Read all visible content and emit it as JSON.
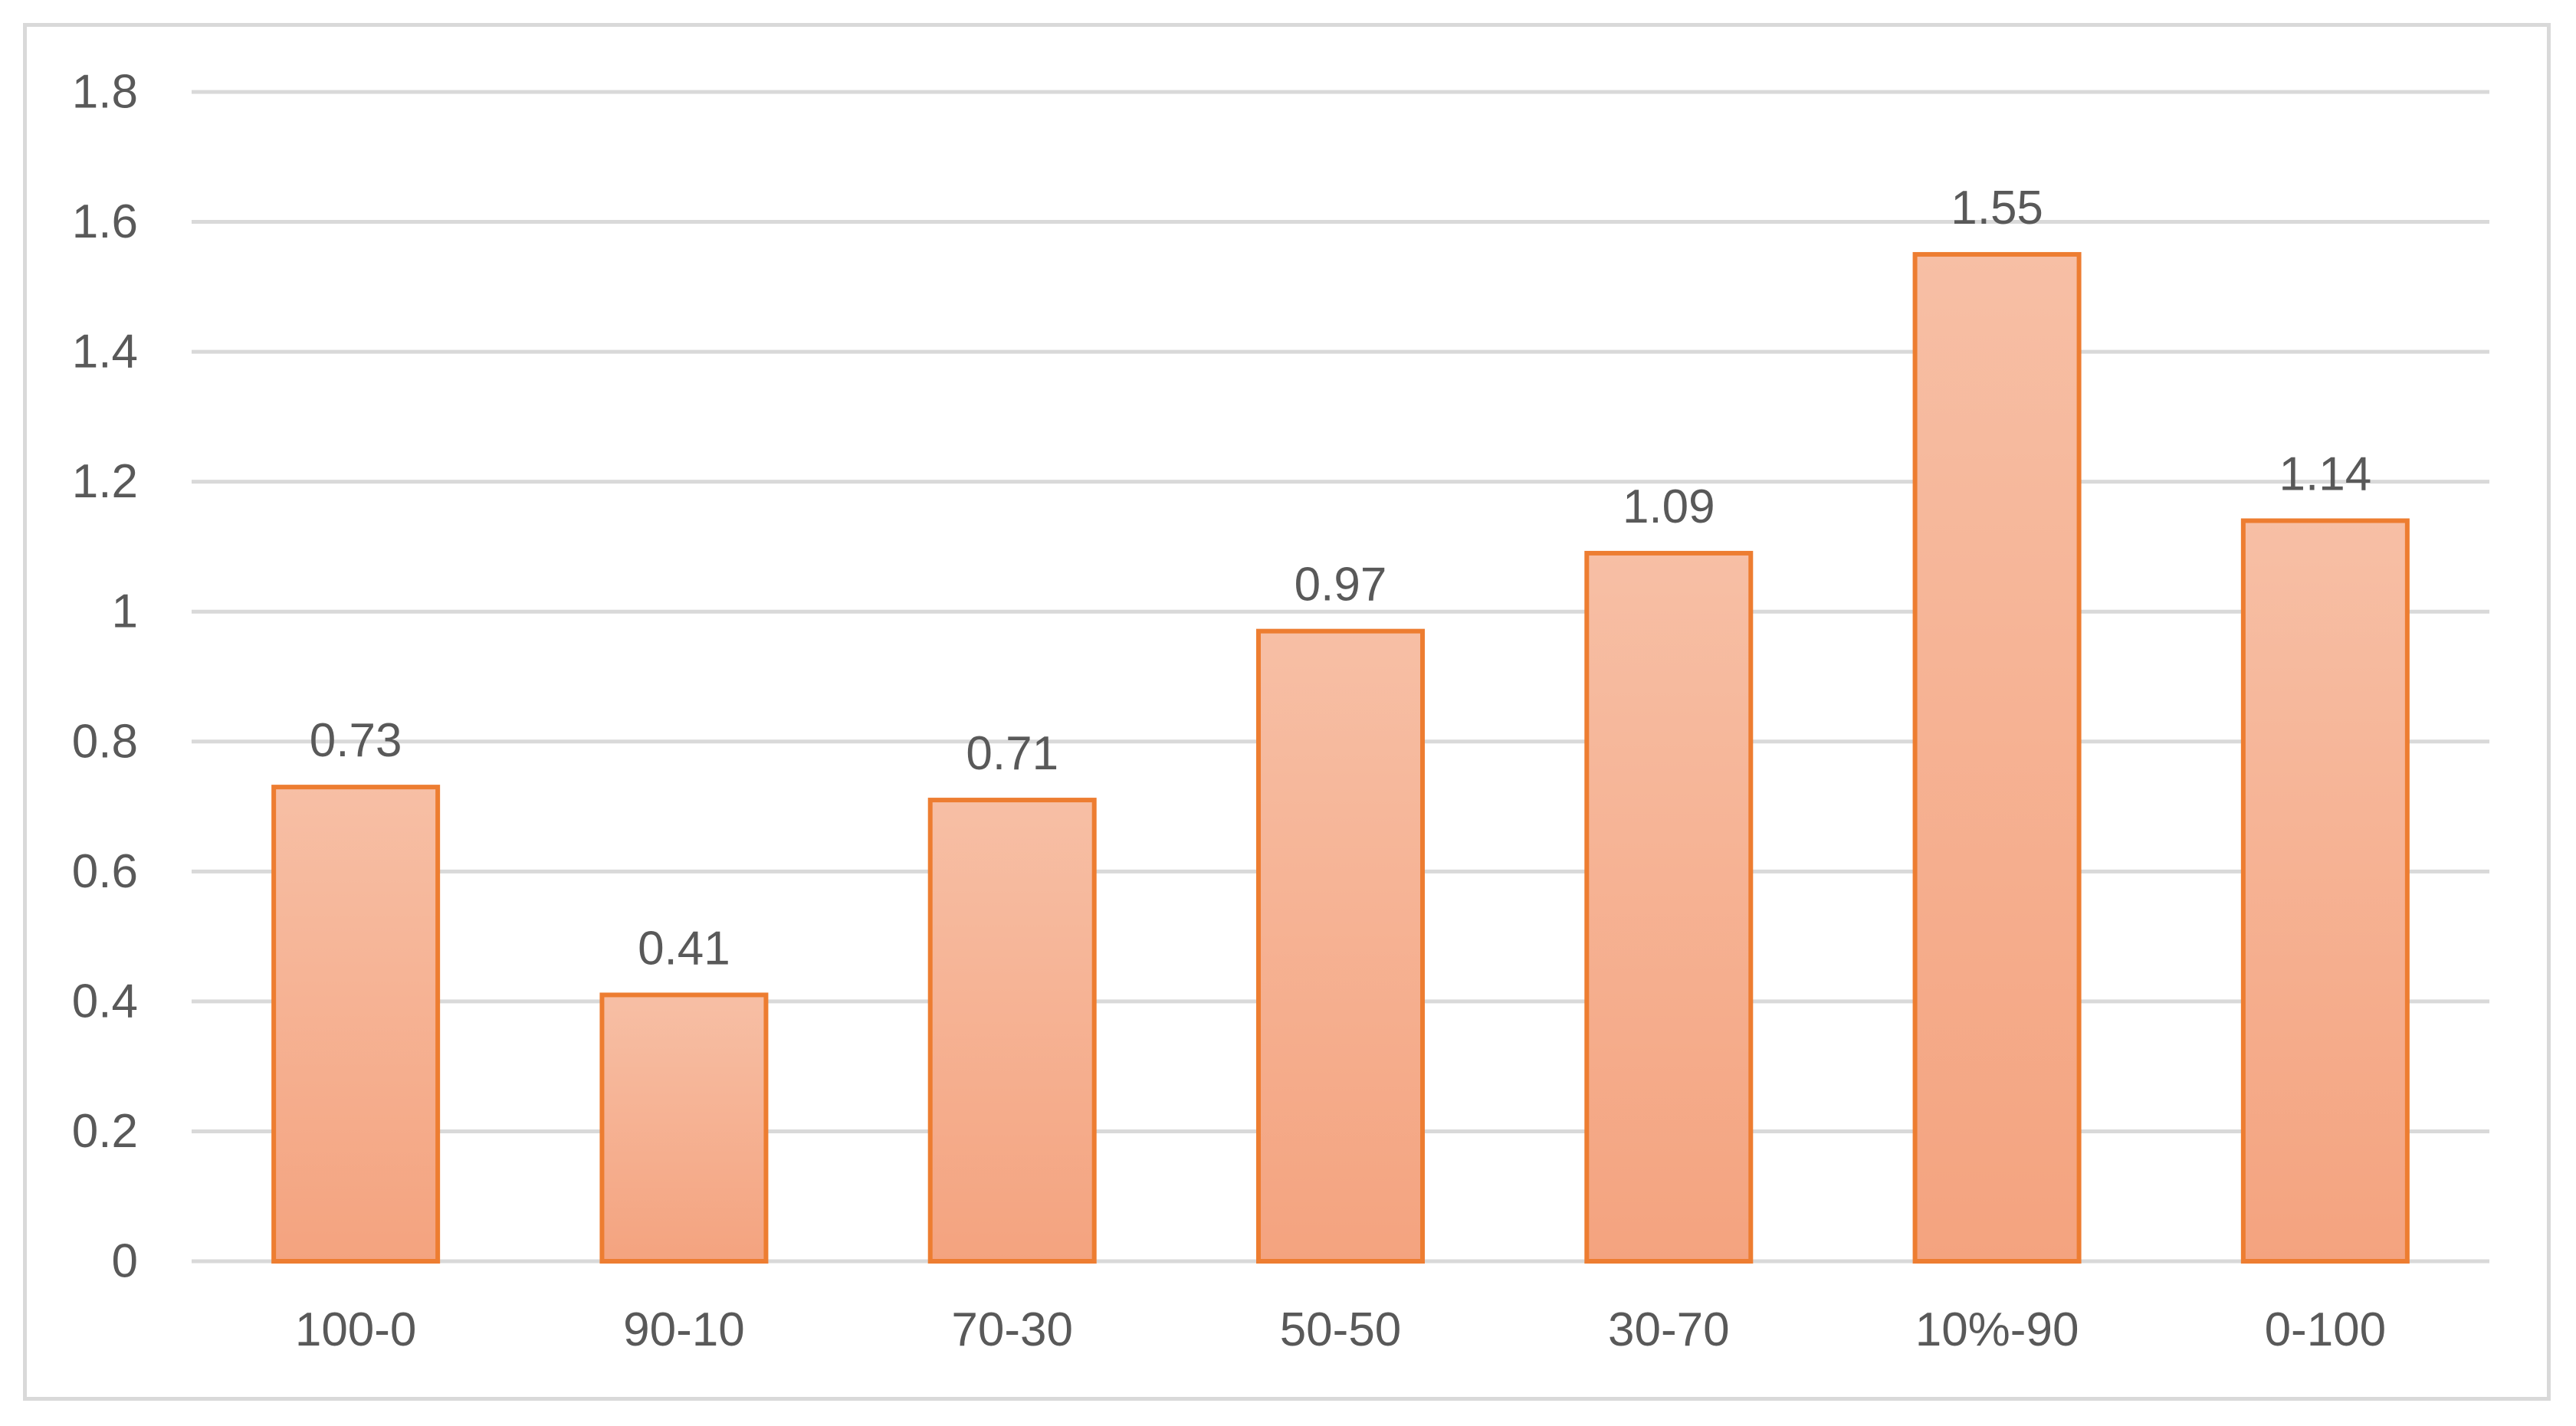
{
  "chart_data": {
    "type": "bar",
    "categories": [
      "100-0",
      "90-10",
      "70-30",
      "50-50",
      "30-70",
      "10%-90",
      "0-100"
    ],
    "values": [
      0.73,
      0.41,
      0.71,
      0.97,
      1.09,
      1.55,
      1.14
    ],
    "data_labels": [
      "0.73",
      "0.41",
      "0.71",
      "0.97",
      "1.09",
      "1.55",
      "1.14"
    ],
    "y_ticks": [
      0,
      0.2,
      0.4,
      0.6,
      0.8,
      1,
      1.2,
      1.4,
      1.6,
      1.8
    ],
    "y_tick_labels": [
      "0",
      "0.2",
      "0.4",
      "0.6",
      "0.8",
      "1",
      "1.2",
      "1.4",
      "1.6",
      "1.8"
    ],
    "ylim": [
      0,
      1.8
    ],
    "title": "",
    "xlabel": "",
    "ylabel": "",
    "grid": true,
    "legend": "none",
    "colors": {
      "bar_fill_top": "#f7bfa5",
      "bar_fill_bottom": "#f4a37f",
      "bar_stroke": "#ed7d31",
      "grid": "#d9d9d9",
      "text": "#595959",
      "frame": "#d9d9d9"
    }
  }
}
